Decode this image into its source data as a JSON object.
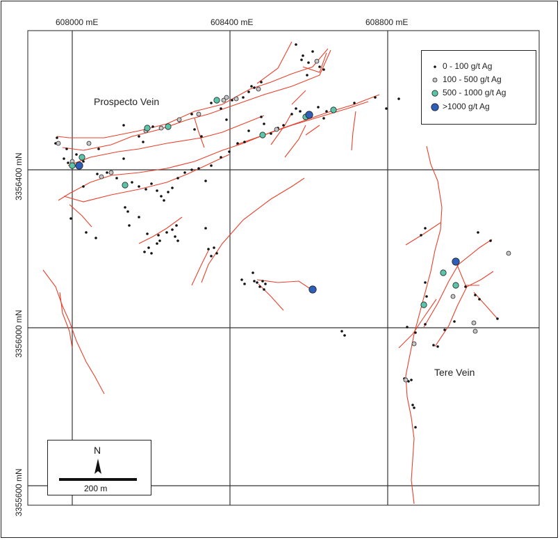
{
  "map": {
    "easting_labels": [
      "608000 mE",
      "608400 mE",
      "608800 mE"
    ],
    "northing_labels": [
      "3356400 mN",
      "3356000 mN",
      "3355600 mN"
    ],
    "vein_labels": [
      "Prospecto Vein",
      "Tere Vein"
    ],
    "legend": {
      "items": [
        {
          "label": "0 - 100 g/t Ag",
          "symbol": "small-black-dot",
          "color": "#111111"
        },
        {
          "label": "100 - 500 g/t Ag",
          "symbol": "grey-circle",
          "color": "#c8c8c8"
        },
        {
          "label": "500 - 1000 g/t Ag",
          "symbol": "teal-circle",
          "color": "#5cc4a8"
        },
        {
          "label": ">1000 g/t Ag",
          "symbol": "blue-circle",
          "color": "#2d5fb8"
        }
      ]
    },
    "scale": {
      "north_label": "N",
      "scale_label": "200 m"
    },
    "colors": {
      "vein": "#e8402a",
      "grid": "#333333"
    }
  }
}
